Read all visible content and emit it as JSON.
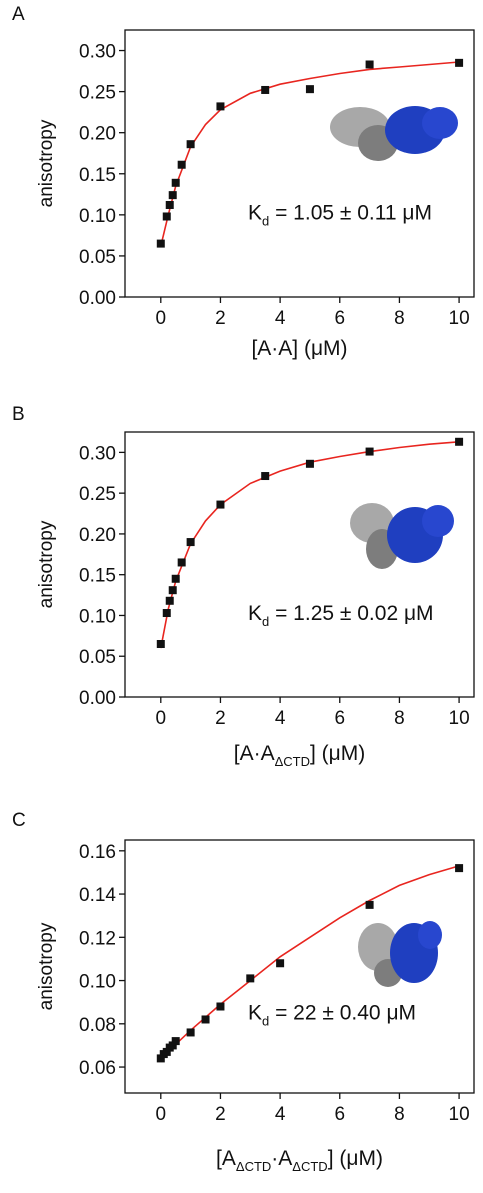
{
  "chart_data": [
    {
      "panel": "A",
      "type": "scatter",
      "y_label": "anisotropy",
      "x_label": [
        "[A·A] (μM)"
      ],
      "annotation": [
        "K",
        "d",
        " = 1.05 ± 0.11 μM"
      ],
      "xlim": [
        -1.2,
        10.5
      ],
      "ylim": [
        0,
        0.325
      ],
      "xticks": [
        0,
        2,
        4,
        6,
        8,
        10
      ],
      "yticks": [
        {
          "value": 0,
          "label": "0.00"
        },
        {
          "value": 0.05,
          "label": "0.05"
        },
        {
          "value": 0.1,
          "label": "0.10"
        },
        {
          "value": 0.15,
          "label": "0.15"
        },
        {
          "value": 0.2,
          "label": "0.20"
        },
        {
          "value": 0.25,
          "label": "0.25"
        },
        {
          "value": 0.3,
          "label": "0.30"
        }
      ],
      "series": [
        {
          "color": "#e8251f",
          "line": true,
          "x": [
            0,
            0.25,
            0.5,
            1,
            1.5,
            2,
            3,
            4,
            5,
            6,
            7,
            8,
            9,
            10
          ],
          "values": [
            0.062,
            0.1,
            0.135,
            0.183,
            0.21,
            0.228,
            0.248,
            0.259,
            0.266,
            0.272,
            0.277,
            0.28,
            0.283,
            0.286
          ]
        },
        {
          "color": "#111111",
          "x": [
            0,
            0.2,
            0.3,
            0.4,
            0.5,
            0.7,
            1,
            2,
            3.5,
            5,
            7,
            10
          ],
          "values": [
            0.065,
            0.098,
            0.112,
            0.124,
            0.139,
            0.161,
            0.186,
            0.232,
            0.252,
            0.253,
            0.283,
            0.285
          ]
        }
      ]
    },
    {
      "panel": "B",
      "type": "scatter",
      "y_label": "anisotropy",
      "x_label": [
        "[A·A",
        "ΔCTD",
        "] (μM)"
      ],
      "annotation": [
        "K",
        "d",
        " = 1.25 ± 0.02 μM"
      ],
      "xlim": [
        -1.2,
        10.5
      ],
      "ylim": [
        0,
        0.325
      ],
      "xticks": [
        0,
        2,
        4,
        6,
        8,
        10
      ],
      "yticks": [
        {
          "value": 0,
          "label": "0.00"
        },
        {
          "value": 0.05,
          "label": "0.05"
        },
        {
          "value": 0.1,
          "label": "0.10"
        },
        {
          "value": 0.15,
          "label": "0.15"
        },
        {
          "value": 0.2,
          "label": "0.20"
        },
        {
          "value": 0.25,
          "label": "0.25"
        },
        {
          "value": 0.3,
          "label": "0.30"
        }
      ],
      "series": [
        {
          "color": "#e8251f",
          "line": true,
          "x": [
            0,
            0.25,
            0.5,
            1,
            1.5,
            2,
            3,
            4,
            5,
            6,
            7,
            8,
            9,
            10
          ],
          "values": [
            0.06,
            0.108,
            0.142,
            0.188,
            0.216,
            0.236,
            0.262,
            0.277,
            0.288,
            0.295,
            0.301,
            0.306,
            0.31,
            0.313
          ]
        },
        {
          "color": "#111111",
          "x": [
            0,
            0.2,
            0.3,
            0.4,
            0.5,
            0.7,
            1,
            2,
            3.5,
            5,
            7,
            10
          ],
          "values": [
            0.065,
            0.103,
            0.118,
            0.131,
            0.145,
            0.165,
            0.19,
            0.236,
            0.271,
            0.286,
            0.301,
            0.313
          ]
        }
      ]
    },
    {
      "panel": "C",
      "type": "scatter",
      "y_label": "anisotropy",
      "x_label": [
        "[A",
        "ΔCTD",
        "·A",
        "ΔCTD",
        "] (μM)"
      ],
      "annotation": [
        "K",
        "d",
        " = 22 ± 0.40 μM"
      ],
      "xlim": [
        -1.2,
        10.5
      ],
      "ylim": [
        0.048,
        0.165
      ],
      "xticks": [
        0,
        2,
        4,
        6,
        8,
        10
      ],
      "yticks": [
        {
          "value": 0.06,
          "label": "0.06"
        },
        {
          "value": 0.08,
          "label": "0.08"
        },
        {
          "value": 0.1,
          "label": "0.10"
        },
        {
          "value": 0.12,
          "label": "0.12"
        },
        {
          "value": 0.14,
          "label": "0.14"
        },
        {
          "value": 0.16,
          "label": "0.16"
        }
      ],
      "series": [
        {
          "color": "#e8251f",
          "line": true,
          "x": [
            0,
            1,
            2,
            3,
            4,
            5,
            6,
            7,
            8,
            9,
            10
          ],
          "values": [
            0.064,
            0.077,
            0.089,
            0.1,
            0.111,
            0.12,
            0.129,
            0.137,
            0.144,
            0.149,
            0.153
          ]
        },
        {
          "color": "#111111",
          "x": [
            0,
            0.1,
            0.2,
            0.3,
            0.4,
            0.5,
            1,
            1.5,
            2,
            3,
            4,
            7,
            10
          ],
          "values": [
            0.064,
            0.066,
            0.067,
            0.069,
            0.07,
            0.072,
            0.076,
            0.082,
            0.088,
            0.101,
            0.108,
            0.135,
            0.152
          ]
        }
      ]
    }
  ]
}
